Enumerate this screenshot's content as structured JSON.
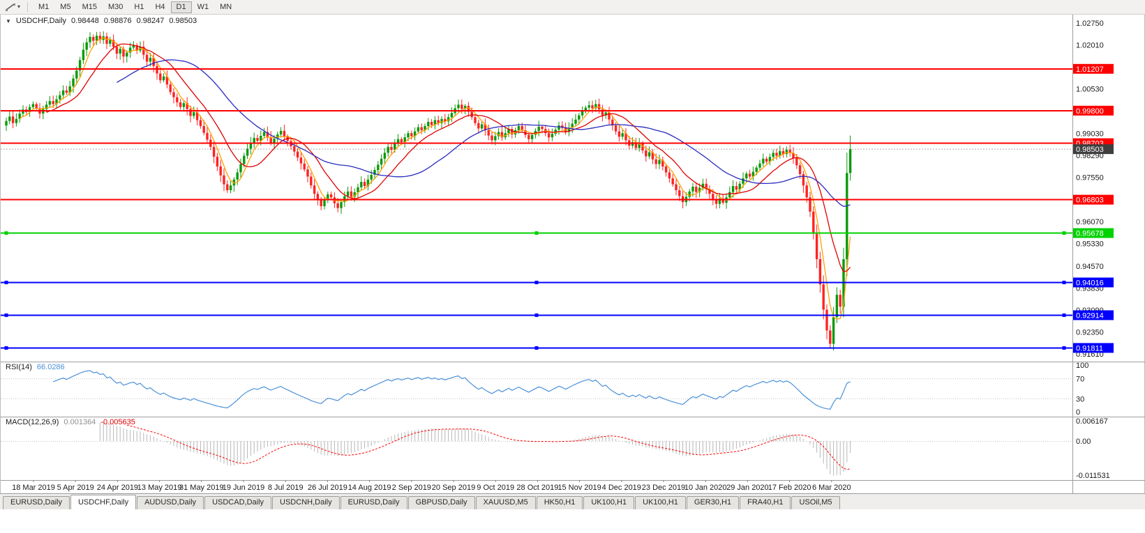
{
  "toolbar": {
    "tools_icon": "line-studies-icon",
    "timeframes": [
      {
        "label": "M1",
        "active": false
      },
      {
        "label": "M5",
        "active": false
      },
      {
        "label": "M15",
        "active": false
      },
      {
        "label": "M30",
        "active": false
      },
      {
        "label": "H1",
        "active": false
      },
      {
        "label": "H4",
        "active": false
      },
      {
        "label": "D1",
        "active": true
      },
      {
        "label": "W1",
        "active": false
      },
      {
        "label": "MN",
        "active": false
      }
    ]
  },
  "chart": {
    "symbol_label": "USDCHF,Daily",
    "ohlc": {
      "open": "0.98448",
      "high": "0.98876",
      "low": "0.98247",
      "close": "0.98503"
    },
    "colors": {
      "bull": "#0a9a0a",
      "bear": "#ff2222",
      "current_price_badge": "#3f3f3f",
      "axis_text": "#1a1a1a"
    },
    "moving_averages": [
      {
        "period": 5,
        "color": "#ffa000"
      },
      {
        "period": 13,
        "color": "#e00000"
      },
      {
        "period": 34,
        "color": "#2a2ac0"
      }
    ],
    "horizontal_lines": [
      {
        "price": 1.01207,
        "label": "1.01207",
        "color": "#ff0000",
        "width": 2,
        "handles": false
      },
      {
        "price": 0.998,
        "label": "0.99800",
        "color": "#ff0000",
        "width": 2,
        "handles": false
      },
      {
        "price": 0.98703,
        "label": "0.98703",
        "color": "#ff0000",
        "width": 2,
        "handles": false
      },
      {
        "price": 0.96803,
        "label": "0.96803",
        "color": "#ff0000",
        "width": 2,
        "handles": false
      },
      {
        "price": 0.95678,
        "label": "0.95678",
        "color": "#00d200",
        "width": 2,
        "handles": true
      },
      {
        "price": 0.94016,
        "label": "0.94016",
        "color": "#0000ff",
        "width": 2,
        "handles": true
      },
      {
        "price": 0.92914,
        "label": "0.92914",
        "color": "#0000ff",
        "width": 2,
        "handles": true
      },
      {
        "price": 0.91811,
        "label": "0.91811",
        "color": "#0000ff",
        "width": 2,
        "handles": true
      }
    ],
    "current_price": {
      "price": 0.98503,
      "label": "0.98503"
    },
    "price_axis_labels": [
      "1.02750",
      "1.02010",
      "1.01270",
      "1.00530",
      "0.99790",
      "0.99030",
      "0.98290",
      "0.97550",
      "0.96810",
      "0.96070",
      "0.95330",
      "0.94570",
      "0.93830",
      "0.93090",
      "0.92350",
      "0.91610"
    ],
    "closes": [
      0.9945,
      0.996,
      0.9938,
      0.9952,
      0.997,
      0.9984,
      0.9975,
      0.9992,
      1.0002,
      0.9988,
      0.997,
      0.9985,
      1.0,
      1.0012,
      1.0002,
      1.0018,
      1.0032,
      1.0048,
      1.004,
      1.0062,
      1.0088,
      1.0115,
      1.015,
      1.0185,
      1.021,
      1.0228,
      1.0215,
      1.0232,
      1.0218,
      1.023,
      1.0205,
      1.0218,
      1.0195,
      1.0172,
      1.0188,
      1.0162,
      1.0175,
      1.0192,
      1.02,
      1.0182,
      1.0195,
      1.0168,
      1.0145,
      1.0158,
      1.013,
      1.0105,
      1.0082,
      1.0095,
      1.0068,
      1.0042,
      1.0025,
      1.0008,
      0.9992,
      1.0005,
      0.9985,
      0.9962,
      0.9975,
      0.9948,
      0.9928,
      0.9905,
      0.9882,
      0.9858,
      0.9825,
      0.9792,
      0.9762,
      0.9732,
      0.9712,
      0.9728,
      0.9748,
      0.9772,
      0.98,
      0.9828,
      0.9852,
      0.9872,
      0.9888,
      0.9878,
      0.9895,
      0.9908,
      0.989,
      0.9872,
      0.9886,
      0.99,
      0.9912,
      0.9893,
      0.9878,
      0.986,
      0.9842,
      0.9822,
      0.9802,
      0.9782,
      0.9758,
      0.9728,
      0.97,
      0.9678,
      0.9658,
      0.9678,
      0.9698,
      0.9688,
      0.9668,
      0.9652,
      0.9672,
      0.9692,
      0.9708,
      0.969,
      0.9705,
      0.9722,
      0.974,
      0.9726,
      0.9748,
      0.9764,
      0.978,
      0.9798,
      0.9818,
      0.9838,
      0.9858,
      0.9848,
      0.9868,
      0.9884,
      0.9874,
      0.989,
      0.9904,
      0.9894,
      0.991,
      0.9924,
      0.9914,
      0.9928,
      0.9942,
      0.9932,
      0.9948,
      0.9938,
      0.9952,
      0.9944,
      0.9958,
      0.9972,
      0.9988,
      1.0,
      0.9986,
      0.9996,
      0.9976,
      0.9958,
      0.9938,
      0.992,
      0.9934,
      0.9914,
      0.9896,
      0.988,
      0.9894,
      0.9908,
      0.989,
      0.9904,
      0.9918,
      0.99,
      0.9914,
      0.9928,
      0.9914,
      0.9898,
      0.9884,
      0.9898,
      0.9912,
      0.9926,
      0.9918,
      0.9904,
      0.989,
      0.9902,
      0.9916,
      0.993,
      0.9922,
      0.9908,
      0.9922,
      0.9936,
      0.995,
      0.9964,
      0.9978,
      0.999,
      0.9998,
      0.9988,
      1.0002,
      0.9984,
      0.9964,
      0.9974,
      0.995,
      0.993,
      0.991,
      0.9892,
      0.9904,
      0.988,
      0.9862,
      0.9874,
      0.9854,
      0.9868,
      0.9846,
      0.9826,
      0.984,
      0.9816,
      0.98,
      0.9814,
      0.9792,
      0.9772,
      0.9752,
      0.9732,
      0.9712,
      0.9692,
      0.9672,
      0.969,
      0.9708,
      0.9724,
      0.9706,
      0.972,
      0.9734,
      0.9716,
      0.97,
      0.9682,
      0.9666,
      0.9684,
      0.967,
      0.9688,
      0.9706,
      0.9726,
      0.9714,
      0.9734,
      0.9752,
      0.9768,
      0.9758,
      0.9774,
      0.9788,
      0.9802,
      0.9818,
      0.9808,
      0.9824,
      0.9838,
      0.9828,
      0.9844,
      0.9834,
      0.9848,
      0.9838,
      0.982,
      0.9796,
      0.9766,
      0.9728,
      0.9688,
      0.964,
      0.9565,
      0.948,
      0.9395,
      0.931,
      0.924,
      0.9195,
      0.9285,
      0.936,
      0.932,
      0.948,
      0.977,
      0.98503
    ]
  },
  "rsi": {
    "name": "RSI(14)",
    "value": "66.0286",
    "line_color": "#4a90d9",
    "axis_labels": [
      "100",
      "70",
      "30",
      "0"
    ],
    "levels": [
      70,
      30
    ]
  },
  "macd": {
    "name": "MACD(12,26,9)",
    "value": "0.001364",
    "signal_value": "-0.005635",
    "histogram_color": "#b6b6b6",
    "signal_color": "#ff0000",
    "axis_labels": [
      "0.006167",
      "0.00",
      "-0.011531"
    ]
  },
  "date_axis": [
    "18 Mar 2019",
    "5 Apr 2019",
    "24 Apr 2019",
    "13 May 2019",
    "31 May 2019",
    "19 Jun 2019",
    "8 Jul 2019",
    "26 Jul 2019",
    "14 Aug 2019",
    "2 Sep 2019",
    "20 Sep 2019",
    "9 Oct 2019",
    "28 Oct 2019",
    "15 Nov 2019",
    "4 Dec 2019",
    "23 Dec 2019",
    "10 Jan 2020",
    "29 Jan 2020",
    "17 Feb 2020",
    "6 Mar 2020"
  ],
  "tabs": [
    {
      "label": "EURUSD,Daily",
      "active": false
    },
    {
      "label": "USDCHF,Daily",
      "active": true
    },
    {
      "label": "AUDUSD,Daily",
      "active": false
    },
    {
      "label": "USDCAD,Daily",
      "active": false
    },
    {
      "label": "USDCNH,Daily",
      "active": false
    },
    {
      "label": "EURUSD,Daily",
      "active": false
    },
    {
      "label": "GBPUSD,Daily",
      "active": false
    },
    {
      "label": "XAUUSD,M5",
      "active": false
    },
    {
      "label": "HK50,H1",
      "active": false
    },
    {
      "label": "UK100,H1",
      "active": false
    },
    {
      "label": "UK100,H1",
      "active": false
    },
    {
      "label": "GER30,H1",
      "active": false
    },
    {
      "label": "FRA40,H1",
      "active": false
    },
    {
      "label": "USOil,M5",
      "active": false
    }
  ]
}
